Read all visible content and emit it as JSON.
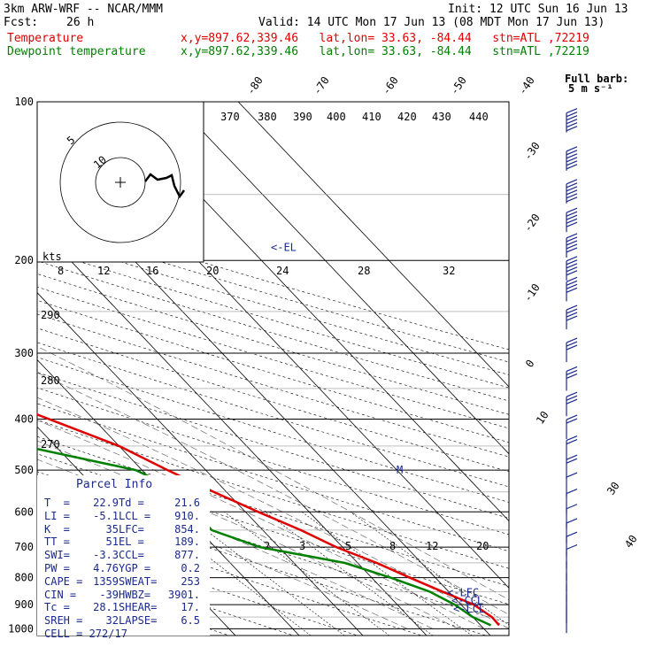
{
  "header": {
    "model": "3km ARW-WRF -- NCAR/MMM",
    "init": "Init: 12 UTC Sun 16 Jun 13",
    "fcst_label": "Fcst:",
    "fcst_value": "26 h",
    "valid": "Valid: 14 UTC Mon 17 Jun 13 (08 MDT Mon 17 Jun 13)",
    "temp_label": "Temperature",
    "temp_info": "x,y=897.62,339.46   lat,lon= 33.63, -84.44   stn=ATL ,72219",
    "dew_label": "Dewpoint temperature",
    "dew_info": "x,y=897.62,339.46   lat,lon= 33.63, -84.44   stn=ATL ,72219"
  },
  "colors": {
    "temperature": "#e00000",
    "dewpoint": "#008000",
    "isotherm": "#000000",
    "wind": "#1a2a8c",
    "annotation": "#1a2a8c"
  },
  "full_barb_label": [
    "Full barb:",
    "5 m s⁻¹"
  ],
  "hodograph": {
    "units": "kts",
    "ring_labels": [
      "5",
      "10"
    ]
  },
  "parcel_info": {
    "title": "Parcel Info",
    "rows": [
      [
        "T  =",
        "22.9",
        "Td =",
        "21.6"
      ],
      [
        "LI =",
        "-5.1",
        "LCL =",
        "910."
      ],
      [
        "K  =",
        "35",
        "LFC=",
        "854."
      ],
      [
        "TT =",
        "51",
        "EL =",
        "189."
      ],
      [
        "SWI=",
        "-3.3",
        "CCL=",
        "877."
      ],
      [
        "PW =",
        "4.76",
        "YGP =",
        "0.2"
      ],
      [
        "CAPE =",
        "1359",
        "SWEAT=",
        "253"
      ],
      [
        "CIN =",
        "-39",
        "HWBZ=",
        "3901."
      ],
      [
        "Tc =",
        "28.1",
        "SHEAR=",
        "17."
      ],
      [
        "SREH =",
        "32",
        "LAPSE=",
        "6.5"
      ],
      [
        "CELL = 272/17",
        "",
        "",
        ""
      ]
    ]
  },
  "level_markers": [
    "<-EL",
    "<-LFC",
    "<-CCL",
    "<-LCL",
    "M"
  ],
  "chart_data": {
    "type": "line",
    "pressure_ticks": [
      100,
      200,
      300,
      400,
      500,
      600,
      700,
      800,
      900,
      1000
    ],
    "isotherm_labels_top": [
      "-80",
      "-70",
      "-60",
      "-50",
      "-40"
    ],
    "isotherm_labels_right": [
      "-30",
      "-20",
      "-10",
      "0",
      "10",
      "30",
      "40"
    ],
    "theta_labels": [
      "370",
      "380",
      "390",
      "400",
      "410",
      "420",
      "430",
      "440"
    ],
    "speed_labels": [
      "8",
      "12",
      "16",
      "20",
      "24",
      "28",
      "32"
    ],
    "dry_adiabat_labels": [
      "290",
      "280",
      "270"
    ],
    "mixing_ratio_labels": [
      "2",
      "3",
      "5",
      "8",
      "12",
      "20"
    ],
    "series": [
      {
        "name": "Temperature",
        "points": [
          [
            100,
            -73
          ],
          [
            150,
            -62
          ],
          [
            180,
            -56
          ],
          [
            200,
            -52
          ],
          [
            250,
            -43
          ],
          [
            300,
            -34
          ],
          [
            350,
            -25
          ],
          [
            400,
            -17
          ],
          [
            450,
            -10
          ],
          [
            500,
            -6
          ],
          [
            550,
            -2
          ],
          [
            600,
            2
          ],
          [
            650,
            6
          ],
          [
            700,
            9
          ],
          [
            750,
            13
          ],
          [
            800,
            16
          ],
          [
            850,
            19
          ],
          [
            900,
            22
          ],
          [
            950,
            23
          ],
          [
            985,
            22.9
          ]
        ]
      },
      {
        "name": "Dewpoint temperature",
        "points": [
          [
            100,
            -88
          ],
          [
            130,
            -82
          ],
          [
            160,
            -78
          ],
          [
            190,
            -70
          ],
          [
            220,
            -67
          ],
          [
            250,
            -58
          ],
          [
            300,
            -50
          ],
          [
            350,
            -42
          ],
          [
            400,
            -34
          ],
          [
            450,
            -25
          ],
          [
            500,
            -11
          ],
          [
            550,
            -7
          ],
          [
            600,
            -8
          ],
          [
            650,
            -8
          ],
          [
            700,
            -3
          ],
          [
            750,
            8
          ],
          [
            800,
            13
          ],
          [
            850,
            17
          ],
          [
            900,
            19
          ],
          [
            950,
            20
          ],
          [
            985,
            21.6
          ]
        ]
      }
    ],
    "wind_profile": {
      "units": "m/s",
      "levels": [
        110,
        130,
        150,
        170,
        190,
        210,
        230,
        260,
        300,
        340,
        380,
        420,
        460,
        500,
        540,
        580,
        620,
        660,
        700,
        740,
        780,
        820,
        860,
        900,
        940,
        980
      ],
      "speed_full_barbs": [
        6,
        6,
        6,
        5,
        5,
        5,
        4,
        4,
        3,
        3,
        3,
        2,
        2,
        2,
        1,
        1,
        1,
        1,
        1,
        1,
        0,
        0,
        0,
        0,
        0,
        0
      ]
    }
  }
}
